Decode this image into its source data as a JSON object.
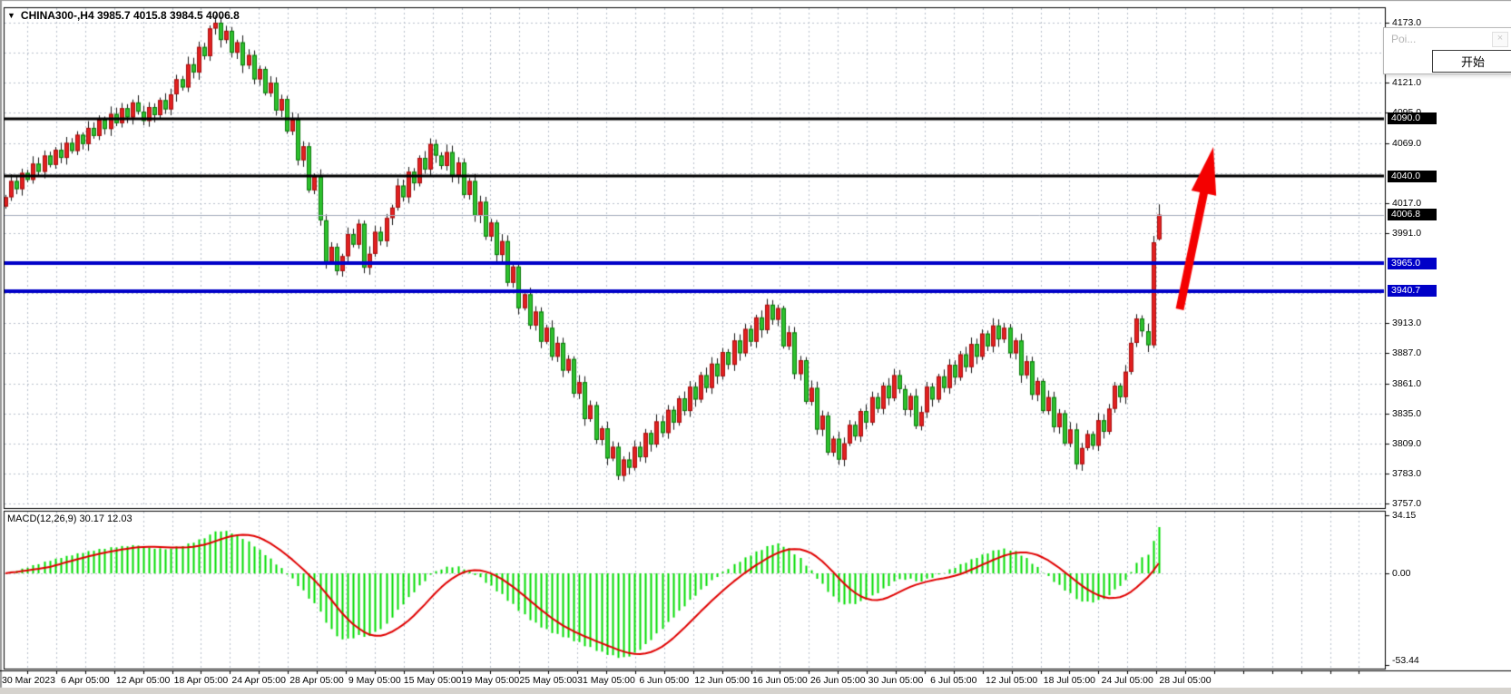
{
  "header": {
    "collapse_icon": "▼",
    "symbol_line": "CHINA300-,H4  3985.7 4015.8 3984.5 4006.8"
  },
  "popup": {
    "title": "Poi...",
    "close_icon": "×",
    "button_label": "开始"
  },
  "macd_panel": {
    "label": "MACD(12,26,9) 30.17 12.03"
  },
  "price_axis": {
    "labels": [
      {
        "text": "4173.0",
        "price": 4173.0
      },
      {
        "text": "4121.0",
        "price": 4121.0
      },
      {
        "text": "4095.0",
        "price": 4095.0
      },
      {
        "text": "4069.0",
        "price": 4069.0
      },
      {
        "text": "4017.0",
        "price": 4017.0
      },
      {
        "text": "3991.0",
        "price": 3991.0
      },
      {
        "text": "3913.0",
        "price": 3913.0
      },
      {
        "text": "3887.0",
        "price": 3887.0
      },
      {
        "text": "3861.0",
        "price": 3861.0
      },
      {
        "text": "3835.0",
        "price": 3835.0
      },
      {
        "text": "3809.0",
        "price": 3809.0
      },
      {
        "text": "3783.0",
        "price": 3783.0
      },
      {
        "text": "3757.0",
        "price": 3757.0
      }
    ],
    "tags": [
      {
        "text": "4090.0",
        "price": 4090.0,
        "bg": "#000000"
      },
      {
        "text": "4040.0",
        "price": 4040.0,
        "bg": "#000000"
      },
      {
        "text": "4006.8",
        "price": 4006.8,
        "bg": "#000000"
      },
      {
        "text": "3965.0",
        "price": 3965.0,
        "bg": "#0000c8"
      },
      {
        "text": "3940.7",
        "price": 3940.7,
        "bg": "#0000c8"
      }
    ]
  },
  "macd_axis": {
    "labels": [
      {
        "text": "34.15",
        "value": 34.15
      },
      {
        "text": "0.00",
        "value": 0.0
      },
      {
        "text": "-53.44",
        "value": -53.44
      }
    ]
  },
  "time_axis": {
    "labels": [
      "30 Mar 2023",
      "6 Apr 05:00",
      "12 Apr 05:00",
      "18 Apr 05:00",
      "24 Apr 05:00",
      "28 Apr 05:00",
      "9 May 05:00",
      "15 May 05:00",
      "19 May 05:00",
      "25 May 05:00",
      "31 May 05:00",
      "6 Jun 05:00",
      "12 Jun 05:00",
      "16 Jun 05:00",
      "26 Jun 05:00",
      "30 Jun 05:00",
      "6 Jul 05:00",
      "12 Jul 05:00",
      "18 Jul 05:00",
      "24 Jul 05:00",
      "28 Jul 05:00"
    ]
  },
  "chart_data": {
    "type": "candlestick",
    "symbol": "CHINA300",
    "timeframe": "H4",
    "title": "CHINA300-,H4",
    "price_range": {
      "top": 4173.0,
      "bottom": 3757.0,
      "grid_step": 26.0
    },
    "current_candle": {
      "open": 3985.7,
      "high": 4015.8,
      "low": 3984.5,
      "close": 4006.8
    },
    "closes": [
      4022,
      4036,
      4029,
      4043,
      4037,
      4051,
      4044,
      4058,
      4050,
      4063,
      4056,
      4069,
      4062,
      4076,
      4068,
      4082,
      4075,
      4089,
      4081,
      4094,
      4086,
      4099,
      4091,
      4104,
      4096,
      4088,
      4100,
      4093,
      4106,
      4098,
      4111,
      4124,
      4117,
      4137,
      4130,
      4152,
      4144,
      4168,
      4173,
      4158,
      4166,
      4147,
      4156,
      4136,
      4145,
      4124,
      4133,
      4112,
      4121,
      4097,
      4107,
      4079,
      4089,
      4054,
      4066,
      4028,
      4040,
      4002,
      3966,
      3979,
      3958,
      3971,
      3990,
      3981,
      3999,
      3961,
      3973,
      3992,
      3984,
      4004,
      4013,
      4032,
      4022,
      4044,
      4034,
      4056,
      4046,
      4068,
      4058,
      4049,
      4061,
      4040,
      4052,
      4024,
      4036,
      4006,
      4018,
      3988,
      4000,
      3972,
      3984,
      3948,
      3962,
      3926,
      3938,
      3911,
      3923,
      3897,
      3909,
      3884,
      3896,
      3872,
      3882,
      3852,
      3862,
      3830,
      3842,
      3812,
      3822,
      3796,
      3806,
      3781,
      3795,
      3788,
      3806,
      3797,
      3818,
      3808,
      3828,
      3818,
      3838,
      3827,
      3848,
      3837,
      3858,
      3847,
      3868,
      3857,
      3878,
      3867,
      3888,
      3877,
      3898,
      3887,
      3908,
      3897,
      3918,
      3907,
      3929,
      3916,
      3926,
      3893,
      3905,
      3869,
      3881,
      3845,
      3857,
      3821,
      3833,
      3801,
      3813,
      3795,
      3809,
      3825,
      3815,
      3837,
      3827,
      3849,
      3839,
      3859,
      3848,
      3868,
      3856,
      3838,
      3850,
      3824,
      3836,
      3858,
      3847,
      3867,
      3857,
      3877,
      3866,
      3886,
      3875,
      3895,
      3884,
      3904,
      3893,
      3911,
      3899,
      3909,
      3887,
      3898,
      3868,
      3880,
      3851,
      3863,
      3837,
      3849,
      3823,
      3835,
      3809,
      3821,
      3791,
      3805,
      3817,
      3807,
      3829,
      3819,
      3839,
      3859,
      3849,
      3871,
      3896,
      3917,
      3906,
      3894,
      3983,
      4006.8
    ],
    "hlines": [
      {
        "price": 4090.0,
        "color": "#000000",
        "width": 3
      },
      {
        "price": 4040.0,
        "color": "#000000",
        "width": 3
      },
      {
        "price": 3965.0,
        "color": "#0000c8",
        "width": 4
      },
      {
        "price": 3940.7,
        "color": "#0000c8",
        "width": 4
      }
    ],
    "current_price_line": 4006.8,
    "macd": {
      "fast": 12,
      "slow": 26,
      "signal": 9,
      "value": 30.17,
      "signal_value": 12.03,
      "axis_max": 34.15,
      "axis_zero": 0.0,
      "axis_min": -53.44
    },
    "annotation_arrow": {
      "tail": [
        1300,
        341
      ],
      "tip": [
        1337,
        162
      ],
      "color": "#f40000"
    },
    "colors": {
      "bull_body": "#e32020",
      "bull_border": "#a50e0e",
      "bear_body": "#2ec22e",
      "bear_border": "#0b7a0b",
      "wick": "#151515",
      "grid": "#b9c0cc",
      "macd_hist": "#00dc00",
      "macd_signal": "#e00000",
      "current_price_line_color": "#a4adbd",
      "frame": "#000000"
    }
  }
}
